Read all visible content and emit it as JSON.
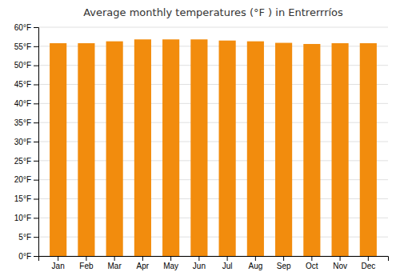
{
  "chart_data": {
    "type": "bar",
    "title": "Average monthly temperatures (°F ) in Entrerrríos",
    "categories": [
      "Jan",
      "Feb",
      "Mar",
      "Apr",
      "May",
      "Jun",
      "Jul",
      "Aug",
      "Sep",
      "Oct",
      "Nov",
      "Dec"
    ],
    "values": [
      55.8,
      55.8,
      56.3,
      56.8,
      56.8,
      56.8,
      56.5,
      56.3,
      55.9,
      55.6,
      55.8,
      55.8
    ],
    "color": "#F28C0D",
    "ylim": [
      0,
      60
    ],
    "yticks": [
      {
        "value": 0,
        "label": "0°F"
      },
      {
        "value": 5,
        "label": "5°F"
      },
      {
        "value": 10,
        "label": "10°F"
      },
      {
        "value": 15,
        "label": "15°F"
      },
      {
        "value": 20,
        "label": "20°F"
      },
      {
        "value": 25,
        "label": "25°F"
      },
      {
        "value": 30,
        "label": "30°F"
      },
      {
        "value": 35,
        "label": "35°F"
      },
      {
        "value": 40,
        "label": "40°F"
      },
      {
        "value": 45,
        "label": "45°F"
      },
      {
        "value": 50,
        "label": "50°F"
      },
      {
        "value": 55,
        "label": "55°F"
      },
      {
        "value": 60,
        "label": "60°F"
      }
    ],
    "grid": true
  }
}
